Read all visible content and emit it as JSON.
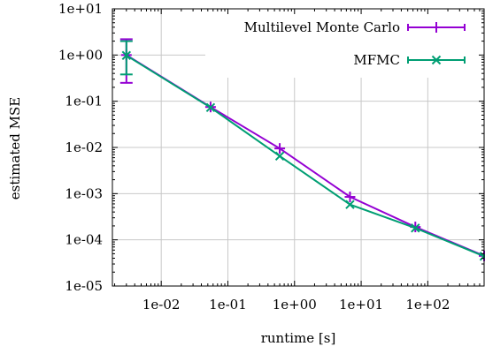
{
  "chart_data": {
    "type": "line",
    "xlabel": "runtime [s]",
    "ylabel": "estimated MSE",
    "x_scale": "log",
    "y_scale": "log",
    "xlim": [
      0.00185,
      700
    ],
    "ylim": [
      1e-05,
      10
    ],
    "grid": true,
    "legend_position": "top-right",
    "x_ticks": [
      0.01,
      0.1,
      1,
      10,
      100
    ],
    "x_tick_labels": [
      "1e-02",
      "1e-01",
      "1e+00",
      "1e+01",
      "1e+02"
    ],
    "y_ticks": [
      1e-05,
      0.0001,
      0.001,
      0.01,
      0.1,
      1,
      10
    ],
    "y_tick_labels": [
      "1e-05",
      "1e-04",
      "1e-03",
      "1e-02",
      "1e-01",
      "1e+00",
      "1e+01"
    ],
    "series": [
      {
        "name": "Multilevel Monte Carlo",
        "color": "#9400d3",
        "marker": "plus",
        "x": [
          0.003,
          0.055,
          0.6,
          6.8,
          65,
          700
        ],
        "y": [
          1.0,
          0.075,
          0.0095,
          0.00085,
          0.00019,
          4.5e-05
        ],
        "error_bar": {
          "index": 0,
          "low": 0.25,
          "high": 2.2
        }
      },
      {
        "name": "MFMC",
        "color": "#009e73",
        "marker": "cross",
        "x": [
          0.003,
          0.055,
          0.6,
          6.8,
          65,
          700
        ],
        "y": [
          0.98,
          0.073,
          0.0065,
          0.00058,
          0.00018,
          4.4e-05
        ],
        "error_bar": {
          "index": 0,
          "low": 0.38,
          "high": 2.0
        }
      }
    ]
  }
}
